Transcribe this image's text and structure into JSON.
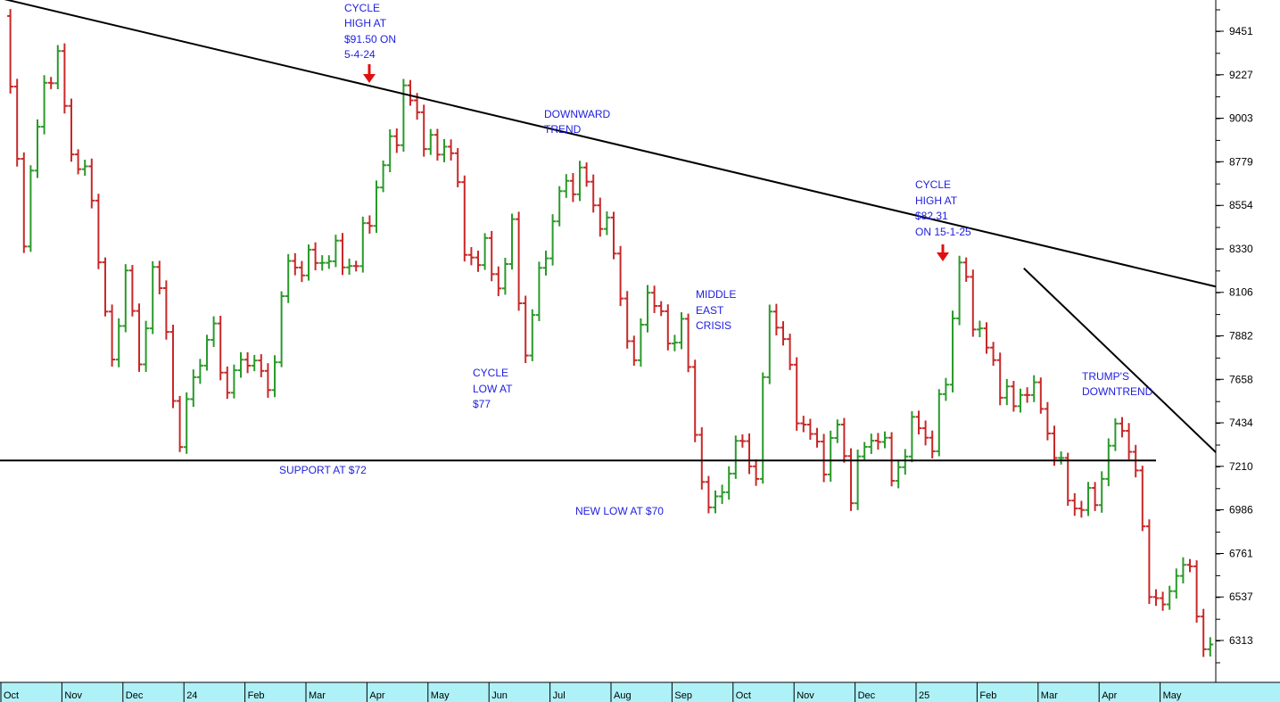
{
  "chart_data": {
    "type": "ohlc-bar",
    "title": "",
    "xlabel": "",
    "ylabel": "",
    "ylim": [
      6160,
      9620
    ],
    "y_ticks": [
      6313,
      6537,
      6761,
      6986,
      7210,
      7434,
      7658,
      7882,
      8106,
      8330,
      8554,
      8779,
      9003,
      9227,
      9451
    ],
    "x_month_labels": [
      "Oct",
      "Nov",
      "Dec",
      "24",
      "Feb",
      "Mar",
      "Apr",
      "May",
      "Jun",
      "Jul",
      "Aug",
      "Sep",
      "Oct",
      "Nov",
      "Dec",
      "25",
      "Feb",
      "Mar",
      "Apr",
      "May"
    ],
    "bar_colors": {
      "up": "#2a9a2a",
      "down": "#c82828"
    },
    "price_path": [
      [
        0,
        9500
      ],
      [
        3,
        8420
      ],
      [
        6,
        9200
      ],
      [
        8,
        9280
      ],
      [
        10,
        8850
      ],
      [
        13,
        8600
      ],
      [
        16,
        7700
      ],
      [
        18,
        8250
      ],
      [
        20,
        7700
      ],
      [
        22,
        8250
      ],
      [
        24,
        7900
      ],
      [
        26,
        7300
      ],
      [
        28,
        7700
      ],
      [
        31,
        7900
      ],
      [
        33,
        7600
      ],
      [
        36,
        7800
      ],
      [
        39,
        7600
      ],
      [
        42,
        8250
      ],
      [
        45,
        8250
      ],
      [
        48,
        8300
      ],
      [
        52,
        8250
      ],
      [
        55,
        8650
      ],
      [
        58,
        8950
      ],
      [
        59,
        9150
      ],
      [
        61,
        9000
      ],
      [
        64,
        8800
      ],
      [
        66,
        8900
      ],
      [
        68,
        8300
      ],
      [
        71,
        8300
      ],
      [
        73,
        8150
      ],
      [
        75,
        8400
      ],
      [
        77,
        7800
      ],
      [
        80,
        8350
      ],
      [
        82,
        8600
      ],
      [
        85,
        8730
      ],
      [
        87,
        8550
      ],
      [
        89,
        8450
      ],
      [
        91,
        8100
      ],
      [
        93,
        7700
      ],
      [
        95,
        8150
      ],
      [
        98,
        7850
      ],
      [
        100,
        7950
      ],
      [
        102,
        7400
      ],
      [
        104,
        6950
      ],
      [
        107,
        7200
      ],
      [
        109,
        7350
      ],
      [
        111,
        7150
      ],
      [
        113,
        8050
      ],
      [
        115,
        7850
      ],
      [
        117,
        7500
      ],
      [
        119,
        7350
      ],
      [
        121,
        7250
      ],
      [
        123,
        7400
      ],
      [
        125,
        7100
      ],
      [
        127,
        7300
      ],
      [
        129,
        7400
      ],
      [
        131,
        7150
      ],
      [
        133,
        7300
      ],
      [
        135,
        7450
      ],
      [
        137,
        7300
      ],
      [
        139,
        7700
      ],
      [
        141,
        8250
      ],
      [
        143,
        8000
      ],
      [
        145,
        7800
      ],
      [
        147,
        7650
      ],
      [
        149,
        7500
      ],
      [
        151,
        7650
      ],
      [
        153,
        7500
      ],
      [
        155,
        7300
      ],
      [
        157,
        7050
      ],
      [
        159,
        7000
      ],
      [
        161,
        7050
      ],
      [
        163,
        7300
      ],
      [
        165,
        7450
      ],
      [
        167,
        7150
      ],
      [
        169,
        6600
      ],
      [
        171,
        6450
      ],
      [
        173,
        6700
      ],
      [
        175,
        6650
      ],
      [
        177,
        6300
      ],
      [
        178,
        6250
      ]
    ],
    "annotations": {
      "cycle_high_2024": [
        "CYCLE",
        "HIGH AT",
        "$91.50 ON",
        "5-4-24"
      ],
      "downward_trend": [
        "DOWNWARD",
        "TREND"
      ],
      "cycle_low": [
        "CYCLE",
        "LOW AT",
        "$77"
      ],
      "middle_east": [
        "MIDDLE",
        "EAST",
        "CRISIS"
      ],
      "cycle_high_2025": [
        "CYCLE",
        "HIGH AT",
        "$82.31",
        "ON 15-1-25"
      ],
      "trumps_downtrend": [
        "TRUMP'S",
        "DOWNTREND"
      ],
      "support": "SUPPORT AT $72",
      "new_low": "NEW LOW AT $70"
    },
    "trend_lines": [
      {
        "name": "downward-trend-line",
        "from": [
          -10,
          9700
        ],
        "to": [
          179.5,
          8130
        ]
      },
      {
        "name": "support-line",
        "from": [
          -10,
          7240
        ],
        "to": [
          170,
          7240
        ]
      },
      {
        "name": "trumps-downtrend-line",
        "from": [
          150.5,
          8230
        ],
        "to": [
          188,
          6975
        ]
      }
    ],
    "grid": false,
    "legend": "none"
  }
}
